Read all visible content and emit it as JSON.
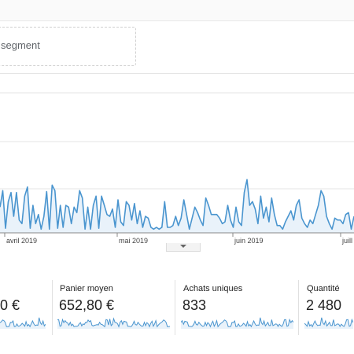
{
  "segment": {
    "label": "segment"
  },
  "chart_data": {
    "type": "area",
    "x_ticks": [
      "avril 2019",
      "mai 2019",
      "juin 2019",
      "juill"
    ],
    "series": [
      {
        "values": [
          28,
          46,
          5,
          34,
          44,
          18,
          44,
          14,
          10,
          40,
          50,
          5,
          30,
          10,
          20,
          4,
          18,
          45,
          4,
          52,
          46,
          5,
          30,
          6,
          30,
          28,
          10,
          28,
          22,
          46,
          38,
          4,
          28,
          4,
          30,
          40,
          5,
          40,
          30,
          20,
          18,
          26,
          6,
          36,
          12,
          8,
          34,
          30,
          14,
          32,
          10,
          24,
          6,
          18,
          16,
          6,
          4,
          6,
          4,
          6,
          34,
          6,
          6,
          8,
          18,
          8,
          16,
          36,
          20,
          4,
          16,
          28,
          22,
          14,
          8,
          38,
          30,
          20,
          20,
          20,
          16,
          10,
          12,
          30,
          14,
          6,
          28,
          12,
          8,
          44,
          58,
          30,
          34,
          26,
          10,
          40,
          16,
          28,
          12,
          38,
          20,
          8,
          8,
          4,
          12,
          18,
          24,
          14,
          30,
          36,
          16,
          10,
          6,
          14,
          10,
          20,
          30,
          46,
          40,
          18,
          10,
          4,
          16,
          14,
          14,
          10,
          20,
          22,
          4,
          18
        ]
      }
    ],
    "colors": {
      "line": "#4a95cf",
      "fill": "#e9f2fa",
      "grid": "#e5e5e5"
    }
  },
  "metrics": [
    {
      "label": "",
      "value": "0 €"
    },
    {
      "label": "Panier moyen",
      "value": "652,80 €"
    },
    {
      "label": "Achats uniques",
      "value": "833"
    },
    {
      "label": "Quantité",
      "value": "2 480"
    }
  ]
}
